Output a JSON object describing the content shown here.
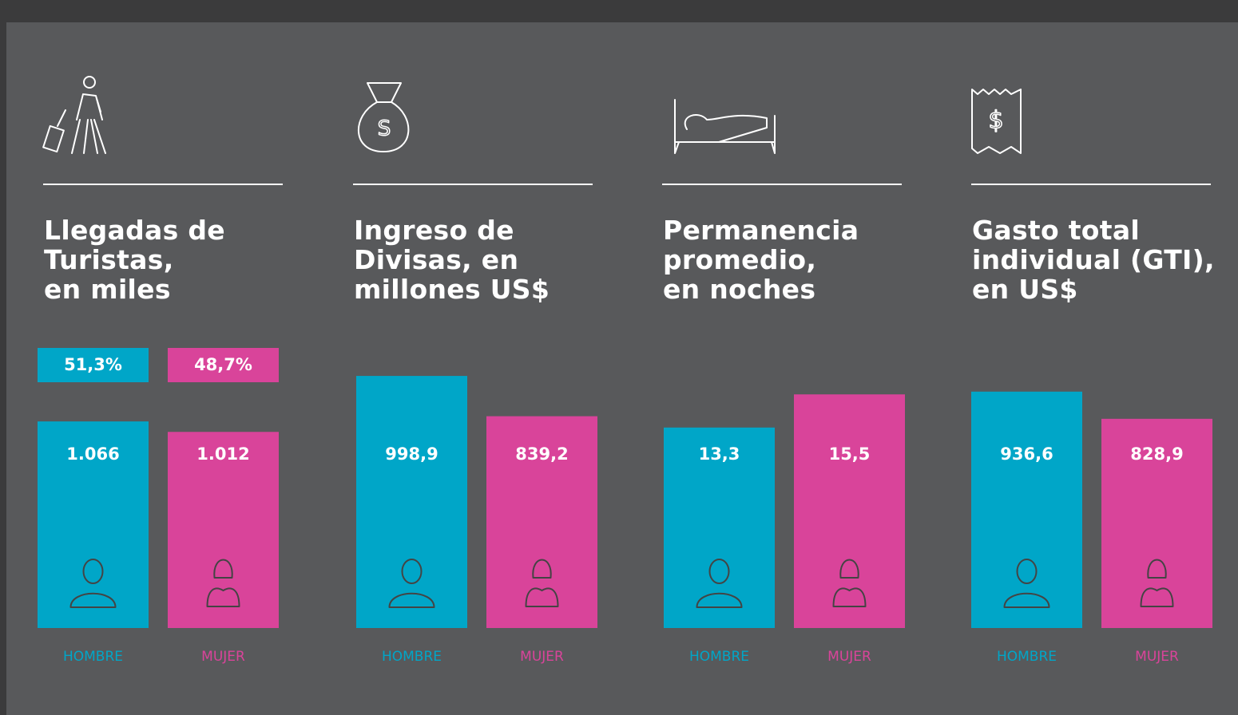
{
  "chart_data": [
    {
      "type": "bar",
      "title": "Llegadas de\nTuristas,\nen miles",
      "categories": [
        "HOMBRE",
        "MUJER"
      ],
      "values": [
        1066,
        1012
      ],
      "value_labels": [
        "1.066",
        "1.012"
      ],
      "shares": [
        51.3,
        48.7
      ],
      "share_labels": [
        "51,3%",
        "48,7%"
      ],
      "colors": [
        "#00a6c8",
        "#d9449a"
      ],
      "ylim": [
        0,
        1400
      ]
    },
    {
      "type": "bar",
      "title": "Ingreso de\nDivisas, en\nmillones US$",
      "categories": [
        "HOMBRE",
        "MUJER"
      ],
      "values": [
        998.9,
        839.2
      ],
      "value_labels": [
        "998,9",
        "839,2"
      ],
      "colors": [
        "#00a6c8",
        "#d9449a"
      ],
      "ylim": [
        0,
        1075
      ]
    },
    {
      "type": "bar",
      "title": "Permanencia\npromedio,\nen noches",
      "categories": [
        "HOMBRE",
        "MUJER"
      ],
      "values": [
        13.3,
        15.5
      ],
      "value_labels": [
        "13,3",
        "15,5"
      ],
      "colors": [
        "#00a6c8",
        "#d9449a"
      ],
      "ylim": [
        0,
        18
      ]
    },
    {
      "type": "bar",
      "title": "Gasto total\nindividual (GTI),\nen US$",
      "categories": [
        "HOMBRE",
        "MUJER"
      ],
      "values": [
        936.6,
        828.9
      ],
      "value_labels": [
        "936,6",
        "828,9"
      ],
      "colors": [
        "#00a6c8",
        "#d9449a"
      ],
      "ylim": [
        0,
        1075
      ]
    }
  ]
}
